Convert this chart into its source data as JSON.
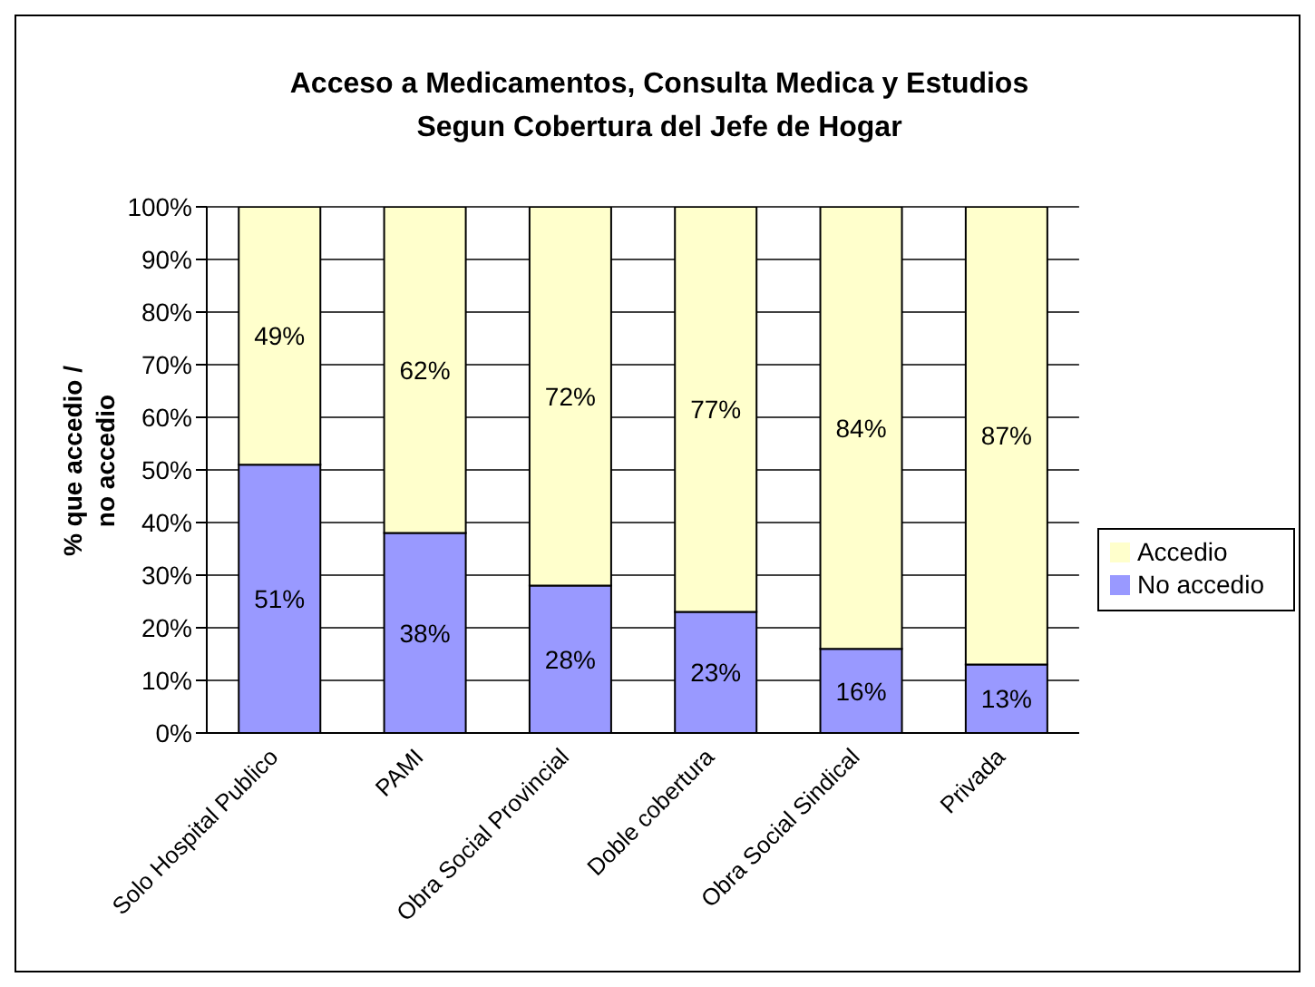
{
  "chart_data": {
    "type": "bar",
    "title": "Acceso a Medicamentos, Consulta Medica y Estudios\nSegun Cobertura del Jefe de Hogar",
    "ylabel": "% que accedio /\nno accedio",
    "categories": [
      "Solo Hospital Publico",
      "PAMI",
      "Obra Social Provincial",
      "Doble cobertura",
      "Obra Social Sindical",
      "Privada"
    ],
    "stacked": true,
    "series": [
      {
        "name": "No accedio",
        "color": "#9999ff",
        "values": [
          51,
          38,
          28,
          23,
          16,
          13
        ],
        "value_labels": [
          "51%",
          "38%",
          "28%",
          "23%",
          "16%",
          "13%"
        ]
      },
      {
        "name": "Accedio",
        "color": "#ffffcc",
        "values": [
          49,
          62,
          72,
          77,
          84,
          87
        ],
        "value_labels": [
          "49%",
          "62%",
          "72%",
          "77%",
          "84%",
          "87%"
        ]
      }
    ],
    "ylim": [
      0,
      100
    ],
    "yticks": [
      {
        "value": 0,
        "label": "0%"
      },
      {
        "value": 10,
        "label": "10%"
      },
      {
        "value": 20,
        "label": "20%"
      },
      {
        "value": 30,
        "label": "30%"
      },
      {
        "value": 40,
        "label": "40%"
      },
      {
        "value": 50,
        "label": "50%"
      },
      {
        "value": 60,
        "label": "60%"
      },
      {
        "value": 70,
        "label": "70%"
      },
      {
        "value": 80,
        "label": "80%"
      },
      {
        "value": 90,
        "label": "90%"
      },
      {
        "value": 100,
        "label": "100%"
      }
    ],
    "grid": "y",
    "legend": "right"
  }
}
